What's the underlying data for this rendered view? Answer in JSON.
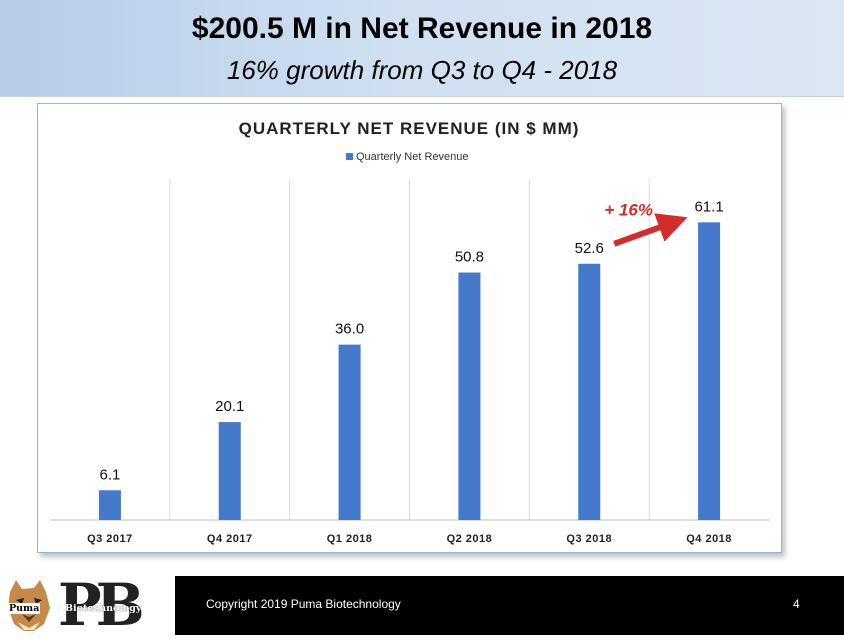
{
  "header": {
    "title": "$200.5 M in Net Revenue in 2018",
    "subtitle": "16% growth from Q3 to Q4 - 2018"
  },
  "chart_data": {
    "type": "bar",
    "title": "QUARTERLY NET REVENUE (IN $ MM)",
    "categories": [
      "Q3 2017",
      "Q4 2017",
      "Q1 2018",
      "Q2 2018",
      "Q3 2018",
      "Q4 2018"
    ],
    "series": [
      {
        "name": "Quarterly Net Revenue",
        "values": [
          6.1,
          20.1,
          36.0,
          50.8,
          52.6,
          61.1
        ]
      }
    ],
    "value_labels": [
      "6.1",
      "20.1",
      "36.0",
      "50.8",
      "52.6",
      "61.1"
    ],
    "ylim": [
      0,
      70
    ],
    "grid": "vertical",
    "legend_position": "top-center",
    "bar_color": "#4479cc",
    "annotation": {
      "text": "+ 16%",
      "color": "#d62b2b",
      "from_category": "Q3 2018",
      "to_category": "Q4 2018"
    }
  },
  "footer": {
    "copyright": "Copyright 2019 Puma Biotechnology",
    "page_number": "4",
    "logo": {
      "monogram": "PB",
      "word_left": "Puma",
      "word_right": "Biotechnology"
    }
  }
}
